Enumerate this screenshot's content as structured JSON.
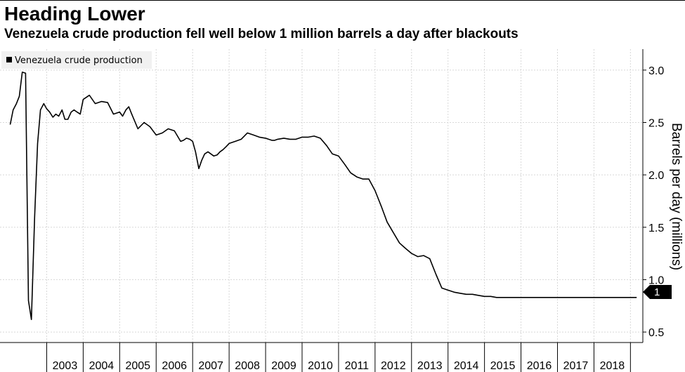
{
  "title": "Heading Lower",
  "subtitle": "Venezuela crude production fell well below 1 million barrels a day after blackouts",
  "chart_data": {
    "type": "line",
    "title": "Heading Lower",
    "subtitle": "Venezuela crude production fell well below 1 million barrels a day after blackouts",
    "xlabel": "",
    "ylabel": "Barrels per day (millions)",
    "ylim": [
      0.4,
      3.2
    ],
    "yticks": [
      "0.5",
      "1.0",
      "1.5",
      "2.0",
      "2.5",
      "3.0"
    ],
    "x_categories": [
      "2003",
      "2004",
      "2005",
      "2006",
      "2007",
      "2008",
      "2009",
      "2010",
      "2011",
      "2012",
      "2013",
      "2014",
      "2015",
      "2016",
      "2017",
      "2018"
    ],
    "legend": {
      "position": "top-left",
      "label": "Venezuela crude production",
      "marker_color": "#000000"
    },
    "last_value_label": "1",
    "grid": true,
    "line_color": "#000000",
    "series": [
      {
        "name": "Venezuela crude production",
        "x": [
          2002.0,
          2002.08,
          2002.17,
          2002.25,
          2002.33,
          2002.42,
          2002.5,
          2002.58,
          2002.67,
          2002.75,
          2002.83,
          2002.92,
          2003.0,
          2003.08,
          2003.17,
          2003.25,
          2003.33,
          2003.42,
          2003.5,
          2003.58,
          2003.67,
          2003.75,
          2003.83,
          2003.92,
          2004.0,
          2004.17,
          2004.33,
          2004.5,
          2004.67,
          2004.83,
          2005.0,
          2005.08,
          2005.17,
          2005.25,
          2005.33,
          2005.5,
          2005.67,
          2005.83,
          2006.0,
          2006.17,
          2006.33,
          2006.5,
          2006.67,
          2006.75,
          2006.83,
          2006.92,
          2007.0,
          2007.08,
          2007.17,
          2007.25,
          2007.33,
          2007.42,
          2007.5,
          2007.58,
          2007.67,
          2007.75,
          2007.83,
          2007.92,
          2008.0,
          2008.17,
          2008.33,
          2008.5,
          2008.67,
          2008.83,
          2009.0,
          2009.17,
          2009.25,
          2009.33,
          2009.5,
          2009.67,
          2009.83,
          2010.0,
          2010.17,
          2010.33,
          2010.5,
          2010.67,
          2010.83,
          2011.0,
          2011.17,
          2011.33,
          2011.5,
          2011.67,
          2011.83,
          2012.0,
          2012.17,
          2012.33,
          2012.5,
          2012.67,
          2012.83,
          2013.0,
          2013.17,
          2013.33,
          2013.5,
          2013.67,
          2013.83,
          2014.0,
          2014.17,
          2014.33,
          2014.5,
          2014.67,
          2014.83,
          2015.0,
          2015.17,
          2015.33,
          2015.5,
          2015.67,
          2015.83,
          2016.0,
          2016.17,
          2016.33,
          2016.5,
          2016.67,
          2016.83,
          2017.0,
          2017.17,
          2017.33,
          2017.5,
          2017.67,
          2017.83,
          2018.0,
          2018.17,
          2018.33,
          2018.5,
          2018.67,
          2018.83,
          2018.92,
          2019.0,
          2019.08,
          2019.17
        ],
        "values": [
          2.48,
          2.62,
          2.68,
          2.75,
          2.98,
          2.97,
          0.8,
          0.62,
          1.6,
          2.3,
          2.62,
          2.68,
          2.63,
          2.6,
          2.55,
          2.58,
          2.56,
          2.62,
          2.53,
          2.53,
          2.6,
          2.62,
          2.6,
          2.58,
          2.72,
          2.76,
          2.68,
          2.7,
          2.69,
          2.58,
          2.6,
          2.56,
          2.62,
          2.65,
          2.58,
          2.44,
          2.5,
          2.46,
          2.38,
          2.4,
          2.44,
          2.42,
          2.32,
          2.33,
          2.35,
          2.34,
          2.32,
          2.22,
          2.06,
          2.14,
          2.2,
          2.22,
          2.2,
          2.18,
          2.19,
          2.22,
          2.24,
          2.27,
          2.3,
          2.32,
          2.34,
          2.4,
          2.38,
          2.36,
          2.35,
          2.33,
          2.33,
          2.34,
          2.35,
          2.34,
          2.34,
          2.36,
          2.36,
          2.37,
          2.35,
          2.28,
          2.2,
          2.18,
          2.1,
          2.02,
          1.98,
          1.96,
          1.96,
          1.85,
          1.7,
          1.55,
          1.45,
          1.35,
          1.3,
          1.25,
          1.22,
          1.23,
          1.2,
          1.05,
          0.92,
          0.9,
          0.88,
          0.87,
          0.86,
          0.86,
          0.85,
          0.84,
          0.84,
          0.83,
          0.83,
          0.83,
          0.83,
          0.83,
          0.83,
          0.83,
          0.83,
          0.83,
          0.83,
          0.83,
          0.83,
          0.83,
          0.83,
          0.83,
          0.83,
          0.83,
          0.83,
          0.83,
          0.83,
          0.83,
          0.83,
          0.83,
          0.83,
          0.83,
          0.83
        ]
      }
    ]
  }
}
